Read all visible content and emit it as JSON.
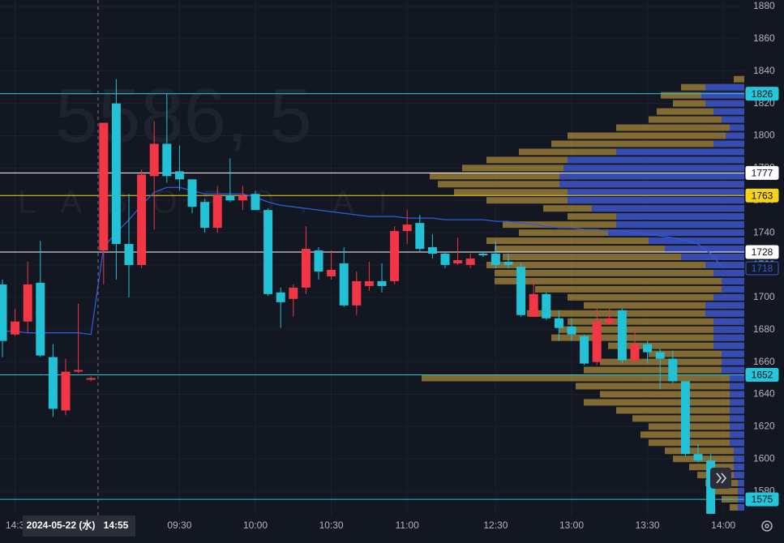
{
  "chart_data": {
    "type": "candlestick",
    "watermark": {
      "symbol": "5586, 5",
      "name": "LABORO.AI"
    },
    "crosshair": {
      "date": "2024-05-22 (水)",
      "time": "14:55"
    },
    "categories": [
      null,
      "14:3",
      null,
      null,
      null,
      null,
      null,
      null,
      null,
      null,
      null,
      null,
      null,
      null,
      "09:30",
      null,
      null,
      null,
      null,
      null,
      "10:00",
      null,
      null,
      null,
      null,
      null,
      "10:30",
      null,
      null,
      null,
      null,
      null,
      "11:00",
      null,
      null,
      null,
      null,
      null,
      null,
      "12:30",
      null,
      null,
      null,
      null,
      null,
      "13:00",
      null,
      null,
      null,
      null,
      null,
      "13:30",
      null,
      null,
      null,
      null,
      null,
      "14:00"
    ],
    "open": [
      1708,
      1677,
      1685,
      1709,
      1663,
      1630,
      1654,
      1649,
      1729,
      1820,
      1733,
      1720,
      1775,
      1795,
      1778,
      1773,
      1759,
      1743,
      1763,
      1760,
      1764,
      1754,
      1703,
      1699,
      1706,
      1729,
      1713,
      1721,
      1695,
      1707,
      1710,
      1710,
      1741,
      1746,
      1731,
      1727,
      1721,
      1720,
      1727,
      1727,
      1722,
      1719,
      1688,
      1702,
      1687,
      1682,
      1676,
      1660,
      1684,
      1692,
      1661,
      1671,
      1666,
      1662,
      1648,
      1603,
      1599,
      null
    ],
    "high": [
      1711,
      1693,
      1722,
      1735,
      1671,
      1662,
      1696,
      1651,
      1808,
      1835,
      1764,
      1779,
      1809,
      1826,
      1794,
      1773,
      1761,
      1769,
      1786,
      1769,
      1766,
      1755,
      1706,
      1708,
      1744,
      1731,
      1729,
      1731,
      1716,
      1722,
      1721,
      1744,
      1754,
      1751,
      1739,
      1728,
      1737,
      1727,
      1728,
      1735,
      1727,
      1721,
      1711,
      1703,
      1692,
      1687,
      1677,
      1693,
      1693,
      1693,
      1681,
      1673,
      1668,
      1667,
      1648,
      1609,
      1603,
      null
    ],
    "low": [
      1663,
      1676,
      1678,
      1663,
      1626,
      1627,
      1653,
      1648,
      1708,
      1711,
      1700,
      1718,
      1742,
      1771,
      1766,
      1752,
      1740,
      1740,
      1759,
      1754,
      1754,
      1701,
      1681,
      1688,
      1702,
      1711,
      1711,
      1694,
      1689,
      1704,
      1703,
      1708,
      1733,
      1728,
      1724,
      1718,
      1720,
      1718,
      1725,
      1718,
      1718,
      1688,
      1688,
      1686,
      1673,
      1673,
      1658,
      1658,
      1683,
      1659,
      1659,
      1659,
      1643,
      1647,
      1602,
      1598,
      1566,
      null
    ],
    "close": [
      1673,
      1685,
      1708,
      1664,
      1631,
      1654,
      1655,
      1650,
      1808,
      1733,
      1720,
      1776,
      1795,
      1775,
      1773,
      1756,
      1743,
      1763,
      1760,
      1763,
      1754,
      1702,
      1697,
      1706,
      1730,
      1716,
      1717,
      1695,
      1710,
      1710,
      1707,
      1741,
      1745,
      1730,
      1727,
      1720,
      1723,
      1724,
      1726,
      1720,
      1720,
      1689,
      1702,
      1687,
      1681,
      1677,
      1659,
      1685,
      1687,
      1661,
      1671,
      1666,
      1662,
      1648,
      1603,
      1599,
      1566,
      null
    ],
    "up_color": "#f23645",
    "down_color": "#22c1d6",
    "vwap": {
      "color": "#2f5bd8",
      "values": [
        1679,
        1679,
        1678,
        1678,
        1678,
        1678,
        1678,
        1677,
        1731,
        1740,
        1748,
        1757,
        1765,
        1768,
        1768,
        1766,
        1764,
        1764,
        1764,
        1764,
        1762,
        1759,
        1757,
        1756,
        1755,
        1754,
        1753,
        1752,
        1751,
        1750,
        1750,
        1750,
        1749,
        1749,
        1749,
        1748,
        1748,
        1748,
        1748,
        1747,
        1747,
        1746,
        1745,
        1744,
        1743,
        1743,
        1742,
        1742,
        1741,
        1741,
        1740,
        1739,
        1738,
        1737,
        1735,
        1733,
        1727,
        1718
      ]
    },
    "profile": {
      "prices": [
        1570,
        1575,
        1580,
        1585,
        1590,
        1595,
        1600,
        1605,
        1610,
        1615,
        1620,
        1625,
        1630,
        1635,
        1640,
        1645,
        1650,
        1655,
        1660,
        1665,
        1670,
        1675,
        1680,
        1685,
        1690,
        1695,
        1700,
        1705,
        1710,
        1715,
        1720,
        1725,
        1730,
        1735,
        1740,
        1745,
        1750,
        1755,
        1760,
        1765,
        1770,
        1775,
        1780,
        1785,
        1790,
        1795,
        1800,
        1805,
        1810,
        1815,
        1820,
        1825,
        1830,
        1835
      ],
      "xlim": [
        0,
        918
      ],
      "series": [
        {
          "color": "#a8873a",
          "values": [
            18,
            28,
            38,
            48,
            58,
            68,
            88,
            98,
            118,
            128,
            118,
            138,
            158,
            198,
            178,
            208,
            398,
            198,
            178,
            118,
            168,
            238,
            228,
            218,
            268,
            198,
            218,
            258,
            308,
            308,
            318,
            298,
            308,
            318,
            278,
            298,
            218,
            248,
            318,
            358,
            378,
            388,
            348,
            318,
            278,
            238,
            218,
            158,
            118,
            108,
            88,
            103,
            78,
            13
          ]
        },
        {
          "color": "#2a47c9",
          "values": [
            8,
            8,
            8,
            8,
            13,
            13,
            13,
            13,
            18,
            18,
            18,
            18,
            18,
            18,
            18,
            18,
            18,
            28,
            28,
            28,
            38,
            38,
            38,
            38,
            48,
            48,
            38,
            28,
            28,
            38,
            48,
            78,
            98,
            118,
            168,
            158,
            158,
            188,
            218,
            218,
            228,
            228,
            223,
            218,
            158,
            38,
            23,
            18,
            28,
            38,
            48,
            53,
            48,
            0
          ]
        }
      ]
    },
    "levels": [
      {
        "value": 1826,
        "color": "#26c6da",
        "text_color": "#0b0e14",
        "line": true
      },
      {
        "value": 1777,
        "color": "#ffffff",
        "text_color": "#0b0e14",
        "line": true
      },
      {
        "value": 1763,
        "color": "#f5d31c",
        "text_color": "#0b0e14",
        "line": true
      },
      {
        "value": 1728,
        "color": "#ffffff",
        "text_color": "#0b0e14",
        "line": true
      },
      {
        "value": 1718,
        "color": "#2f5bd8",
        "text_color": "#2f5bd8",
        "line": false
      },
      {
        "value": 1652,
        "color": "#26c6da",
        "text_color": "#0b0e14",
        "line": true
      },
      {
        "value": 1575,
        "color": "#26c6da",
        "text_color": "#0b0e14",
        "line": true
      }
    ],
    "ylim": [
      1565,
      1884
    ],
    "yticks": [
      1580,
      1600,
      1620,
      1640,
      1660,
      1680,
      1700,
      1720,
      1740,
      1760,
      1780,
      1800,
      1820,
      1840,
      1860,
      1880
    ],
    "grid": true
  }
}
